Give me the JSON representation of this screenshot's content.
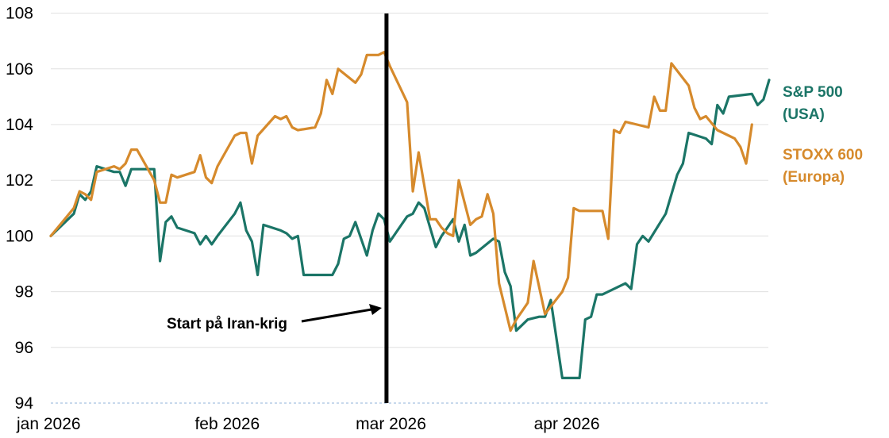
{
  "chart_data": {
    "type": "line",
    "xlim": [
      "2026-01-01",
      "2026-04-30"
    ],
    "ylim": [
      94,
      108
    ],
    "grid": true,
    "legend_placement": "right",
    "y_ticks": [
      "94",
      "96",
      "98",
      "100",
      "102",
      "104",
      "106",
      "108"
    ],
    "x_ticks": [
      {
        "date": "2026-01-01",
        "label": "jan 2026"
      },
      {
        "date": "2026-02-01",
        "label": "feb 2026"
      },
      {
        "date": "2026-03-01",
        "label": "mar 2026"
      },
      {
        "date": "2026-04-01",
        "label": "apr 2026"
      }
    ],
    "event": {
      "date": "2026-02-28",
      "label": "Start på Iran-krig"
    },
    "series": [
      {
        "name_lines": [
          "S&P 500",
          "(USA)"
        ],
        "color": "#1b7567",
        "points": [
          [
            "2026-01-01",
            100.0
          ],
          [
            "2026-01-05",
            100.8
          ],
          [
            "2026-01-06",
            101.5
          ],
          [
            "2026-01-07",
            101.3
          ],
          [
            "2026-01-08",
            101.6
          ],
          [
            "2026-01-09",
            102.5
          ],
          [
            "2026-01-12",
            102.3
          ],
          [
            "2026-01-13",
            102.3
          ],
          [
            "2026-01-14",
            101.8
          ],
          [
            "2026-01-15",
            102.4
          ],
          [
            "2026-01-16",
            102.4
          ],
          [
            "2026-01-19",
            102.4
          ],
          [
            "2026-01-20",
            99.1
          ],
          [
            "2026-01-21",
            100.5
          ],
          [
            "2026-01-22",
            100.7
          ],
          [
            "2026-01-23",
            100.3
          ],
          [
            "2026-01-26",
            100.1
          ],
          [
            "2026-01-27",
            99.7
          ],
          [
            "2026-01-28",
            100.0
          ],
          [
            "2026-01-29",
            99.7
          ],
          [
            "2026-01-30",
            100.0
          ],
          [
            "2026-02-02",
            100.8
          ],
          [
            "2026-02-03",
            101.2
          ],
          [
            "2026-02-04",
            100.2
          ],
          [
            "2026-02-05",
            99.8
          ],
          [
            "2026-02-06",
            98.6
          ],
          [
            "2026-02-07",
            100.4
          ],
          [
            "2026-02-10",
            100.2
          ],
          [
            "2026-02-11",
            100.1
          ],
          [
            "2026-02-12",
            99.9
          ],
          [
            "2026-02-13",
            100.0
          ],
          [
            "2026-02-14",
            98.6
          ],
          [
            "2026-02-19",
            98.6
          ],
          [
            "2026-02-20",
            99.0
          ],
          [
            "2026-02-21",
            99.9
          ],
          [
            "2026-02-22",
            100.0
          ],
          [
            "2026-02-23",
            100.5
          ],
          [
            "2026-02-25",
            99.3
          ],
          [
            "2026-02-26",
            100.2
          ],
          [
            "2026-02-27",
            100.8
          ],
          [
            "2026-02-28",
            100.6
          ],
          [
            "2026-03-01",
            99.8
          ],
          [
            "2026-03-02",
            100.1
          ],
          [
            "2026-03-04",
            100.7
          ],
          [
            "2026-03-05",
            100.8
          ],
          [
            "2026-03-06",
            101.2
          ],
          [
            "2026-03-07",
            101.0
          ],
          [
            "2026-03-09",
            99.6
          ],
          [
            "2026-03-10",
            100.0
          ],
          [
            "2026-03-11",
            100.3
          ],
          [
            "2026-03-12",
            100.6
          ],
          [
            "2026-03-13",
            99.8
          ],
          [
            "2026-03-14",
            100.4
          ],
          [
            "2026-03-15",
            99.3
          ],
          [
            "2026-03-16",
            99.4
          ],
          [
            "2026-03-19",
            99.9
          ],
          [
            "2026-03-20",
            99.8
          ],
          [
            "2026-03-21",
            98.7
          ],
          [
            "2026-03-22",
            98.2
          ],
          [
            "2026-03-23",
            96.6
          ],
          [
            "2026-03-24",
            96.8
          ],
          [
            "2026-03-25",
            97.0
          ],
          [
            "2026-03-27",
            97.1
          ],
          [
            "2026-03-28",
            97.1
          ],
          [
            "2026-03-29",
            97.7
          ],
          [
            "2026-03-31",
            94.9
          ],
          [
            "2026-04-03",
            94.9
          ],
          [
            "2026-04-04",
            97.0
          ],
          [
            "2026-04-05",
            97.1
          ],
          [
            "2026-04-06",
            97.9
          ],
          [
            "2026-04-07",
            97.9
          ],
          [
            "2026-04-11",
            98.3
          ],
          [
            "2026-04-12",
            98.1
          ],
          [
            "2026-04-13",
            99.7
          ],
          [
            "2026-04-14",
            100.0
          ],
          [
            "2026-04-15",
            99.8
          ],
          [
            "2026-04-18",
            100.8
          ],
          [
            "2026-04-20",
            102.2
          ],
          [
            "2026-04-21",
            102.6
          ],
          [
            "2026-04-22",
            103.7
          ],
          [
            "2026-04-25",
            103.5
          ],
          [
            "2026-04-26",
            103.3
          ],
          [
            "2026-04-27",
            104.7
          ],
          [
            "2026-04-28",
            104.4
          ],
          [
            "2026-04-29",
            105.0
          ],
          [
            "2026-05-03",
            105.1
          ],
          [
            "2026-05-04",
            104.7
          ],
          [
            "2026-05-05",
            104.9
          ],
          [
            "2026-05-06",
            105.6
          ]
        ]
      },
      {
        "name_lines": [
          "STOXX 600",
          "(Europa)"
        ],
        "color": "#d68a2c",
        "points": [
          [
            "2026-01-01",
            100.0
          ],
          [
            "2026-01-03",
            100.5
          ],
          [
            "2026-01-05",
            101.0
          ],
          [
            "2026-01-06",
            101.6
          ],
          [
            "2026-01-07",
            101.5
          ],
          [
            "2026-01-08",
            101.3
          ],
          [
            "2026-01-09",
            102.3
          ],
          [
            "2026-01-12",
            102.5
          ],
          [
            "2026-01-13",
            102.4
          ],
          [
            "2026-01-14",
            102.6
          ],
          [
            "2026-01-15",
            103.1
          ],
          [
            "2026-01-16",
            103.1
          ],
          [
            "2026-01-19",
            102.0
          ],
          [
            "2026-01-20",
            101.2
          ],
          [
            "2026-01-21",
            101.2
          ],
          [
            "2026-01-22",
            102.2
          ],
          [
            "2026-01-23",
            102.1
          ],
          [
            "2026-01-26",
            102.3
          ],
          [
            "2026-01-27",
            102.9
          ],
          [
            "2026-01-28",
            102.1
          ],
          [
            "2026-01-29",
            101.9
          ],
          [
            "2026-01-30",
            102.5
          ],
          [
            "2026-02-02",
            103.6
          ],
          [
            "2026-02-03",
            103.7
          ],
          [
            "2026-02-04",
            103.7
          ],
          [
            "2026-02-05",
            102.6
          ],
          [
            "2026-02-06",
            103.6
          ],
          [
            "2026-02-09",
            104.3
          ],
          [
            "2026-02-10",
            104.2
          ],
          [
            "2026-02-11",
            104.3
          ],
          [
            "2026-02-12",
            103.9
          ],
          [
            "2026-02-13",
            103.8
          ],
          [
            "2026-02-16",
            103.9
          ],
          [
            "2026-02-17",
            104.4
          ],
          [
            "2026-02-18",
            105.6
          ],
          [
            "2026-02-19",
            105.1
          ],
          [
            "2026-02-20",
            106.0
          ],
          [
            "2026-02-23",
            105.5
          ],
          [
            "2026-02-24",
            105.8
          ],
          [
            "2026-02-25",
            106.5
          ],
          [
            "2026-02-26",
            106.5
          ],
          [
            "2026-02-27",
            106.5
          ],
          [
            "2026-02-28",
            106.6
          ],
          [
            "2026-03-01",
            106.1
          ],
          [
            "2026-03-04",
            104.8
          ],
          [
            "2026-03-05",
            101.6
          ],
          [
            "2026-03-06",
            103.0
          ],
          [
            "2026-03-08",
            100.6
          ],
          [
            "2026-03-09",
            100.6
          ],
          [
            "2026-03-10",
            100.3
          ],
          [
            "2026-03-11",
            100.1
          ],
          [
            "2026-03-12",
            100.0
          ],
          [
            "2026-03-13",
            102.0
          ],
          [
            "2026-03-15",
            100.4
          ],
          [
            "2026-03-16",
            100.6
          ],
          [
            "2026-03-17",
            100.7
          ],
          [
            "2026-03-18",
            101.5
          ],
          [
            "2026-03-19",
            100.8
          ],
          [
            "2026-03-20",
            98.3
          ],
          [
            "2026-03-22",
            96.6
          ],
          [
            "2026-03-23",
            97.0
          ],
          [
            "2026-03-24",
            97.3
          ],
          [
            "2026-03-25",
            97.6
          ],
          [
            "2026-03-26",
            99.1
          ],
          [
            "2026-03-28",
            97.2
          ],
          [
            "2026-03-31",
            98.0
          ],
          [
            "2026-04-01",
            98.5
          ],
          [
            "2026-04-02",
            101.0
          ],
          [
            "2026-04-03",
            100.9
          ],
          [
            "2026-04-06",
            100.9
          ],
          [
            "2026-04-07",
            100.9
          ],
          [
            "2026-04-08",
            99.9
          ],
          [
            "2026-04-09",
            103.8
          ],
          [
            "2026-04-10",
            103.7
          ],
          [
            "2026-04-11",
            104.1
          ],
          [
            "2026-04-15",
            103.9
          ],
          [
            "2026-04-16",
            105.0
          ],
          [
            "2026-04-17",
            104.5
          ],
          [
            "2026-04-18",
            104.5
          ],
          [
            "2026-04-19",
            106.2
          ],
          [
            "2026-04-22",
            105.4
          ],
          [
            "2026-04-23",
            104.6
          ],
          [
            "2026-04-24",
            104.2
          ],
          [
            "2026-04-25",
            104.3
          ],
          [
            "2026-04-27",
            103.8
          ],
          [
            "2026-04-28",
            103.7
          ],
          [
            "2026-04-29",
            103.6
          ],
          [
            "2026-04-30",
            103.5
          ],
          [
            "2026-05-01",
            103.2
          ],
          [
            "2026-05-02",
            102.6
          ],
          [
            "2026-05-03",
            104.0
          ]
        ]
      }
    ]
  }
}
